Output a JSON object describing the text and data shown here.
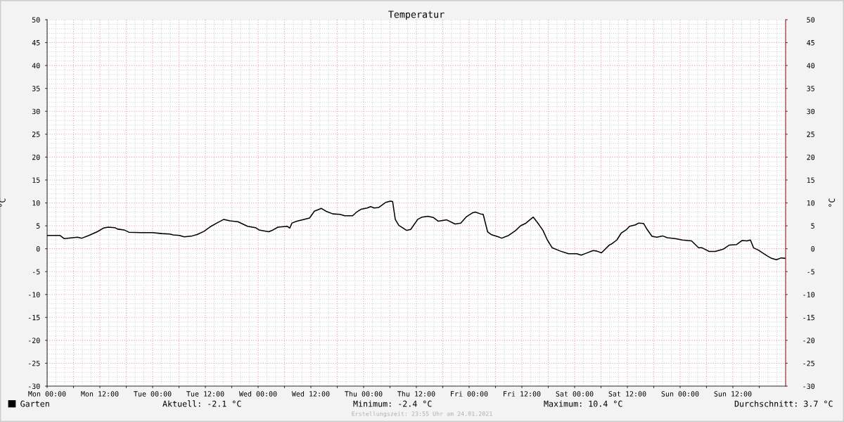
{
  "chart_data": {
    "type": "line",
    "title": "Temperatur",
    "ylabel": "°C",
    "y2label": "°C",
    "x": [
      "2021-01-18T00:00",
      "2021-01-18T02:54",
      "2021-01-18T03:54",
      "2021-01-18T05:48",
      "2021-01-18T06:54",
      "2021-01-18T07:54",
      "2021-01-18T09:30",
      "2021-01-18T11:24",
      "2021-01-18T12:48",
      "2021-01-18T13:54",
      "2021-01-18T15:24",
      "2021-01-18T16:00",
      "2021-01-18T17:30",
      "2021-01-18T18:36",
      "2021-01-18T21:18",
      "2021-01-19T00:00",
      "2021-01-19T02:06",
      "2021-01-19T03:54",
      "2021-01-19T04:42",
      "2021-01-19T06:06",
      "2021-01-19T07:12",
      "2021-01-19T09:00",
      "2021-01-19T10:06",
      "2021-01-19T11:42",
      "2021-01-19T13:18",
      "2021-01-19T14:36",
      "2021-01-19T16:12",
      "2021-01-19T17:36",
      "2021-01-19T19:24",
      "2021-01-19T21:36",
      "2021-01-19T23:24",
      "2021-01-20T00:12",
      "2021-01-20T02:24",
      "2021-01-20T03:24",
      "2021-01-20T04:30",
      "2021-01-20T06:36",
      "2021-01-20T07:12",
      "2021-01-20T07:42",
      "2021-01-20T08:48",
      "2021-01-20T10:06",
      "2021-01-20T11:42",
      "2021-01-20T12:48",
      "2021-01-20T14:24",
      "2021-01-20T15:24",
      "2021-01-20T17:00",
      "2021-01-20T18:36",
      "2021-01-20T19:42",
      "2021-01-20T21:30",
      "2021-01-20T22:24",
      "2021-01-20T23:24",
      "2021-01-21T00:48",
      "2021-01-21T01:36",
      "2021-01-21T02:24",
      "2021-01-21T03:24",
      "2021-01-21T04:00",
      "2021-01-21T05:00",
      "2021-01-21T06:06",
      "2021-01-21T06:36",
      "2021-01-21T07:12",
      "2021-01-21T08:00",
      "2021-01-21T09:48",
      "2021-01-21T10:42",
      "2021-01-21T12:18",
      "2021-01-21T13:18",
      "2021-01-21T14:36",
      "2021-01-21T15:54",
      "2021-01-21T17:00",
      "2021-01-21T18:54",
      "2021-01-21T20:48",
      "2021-01-21T22:06",
      "2021-01-21T23:24",
      "2021-01-22T00:42",
      "2021-01-22T01:24",
      "2021-01-22T02:36",
      "2021-01-22T03:12",
      "2021-01-22T04:12",
      "2021-01-22T05:00",
      "2021-01-22T06:54",
      "2021-01-22T07:24",
      "2021-01-22T09:00",
      "2021-01-22T10:36",
      "2021-01-22T11:42",
      "2021-01-22T12:48",
      "2021-01-22T13:48",
      "2021-01-22T14:36",
      "2021-01-22T15:42",
      "2021-01-22T16:48",
      "2021-01-22T17:48",
      "2021-01-22T18:54",
      "2021-01-22T20:42",
      "2021-01-22T22:36",
      "2021-01-23T00:30",
      "2021-01-23T01:30",
      "2021-01-23T02:36",
      "2021-01-23T04:12",
      "2021-01-23T05:00",
      "2021-01-23T06:06",
      "2021-01-23T07:54",
      "2021-01-23T08:30",
      "2021-01-23T09:36",
      "2021-01-23T10:36",
      "2021-01-23T11:42",
      "2021-01-23T12:30",
      "2021-01-23T13:48",
      "2021-01-23T14:36",
      "2021-01-23T15:42",
      "2021-01-23T16:30",
      "2021-01-23T17:36",
      "2021-01-23T18:42",
      "2021-01-23T20:00",
      "2021-01-23T21:06",
      "2021-01-23T22:54",
      "2021-01-24T00:30",
      "2021-01-24T02:36",
      "2021-01-24T04:12",
      "2021-01-24T05:00",
      "2021-01-24T06:36",
      "2021-01-24T08:00",
      "2021-01-24T09:48",
      "2021-01-24T11:12",
      "2021-01-24T12:48",
      "2021-01-24T14:06",
      "2021-01-24T15:12",
      "2021-01-24T16:00",
      "2021-01-24T16:42",
      "2021-01-24T17:48",
      "2021-01-24T19:42",
      "2021-01-24T20:48",
      "2021-01-24T21:54",
      "2021-01-24T23:00",
      "2021-01-24T23:55"
    ],
    "series": [
      {
        "name": "Garten",
        "color": "#000000",
        "values": [
          2.9,
          2.9,
          2.2,
          2.4,
          2.5,
          2.3,
          2.9,
          3.7,
          4.5,
          4.7,
          4.6,
          4.3,
          4.1,
          3.6,
          3.5,
          3.5,
          3.3,
          3.2,
          3.0,
          2.9,
          2.6,
          2.8,
          3.1,
          3.8,
          4.9,
          5.6,
          6.4,
          6.1,
          5.9,
          4.9,
          4.6,
          4.1,
          3.7,
          4.1,
          4.7,
          4.9,
          4.5,
          5.6,
          6.0,
          6.3,
          6.7,
          8.2,
          8.8,
          8.2,
          7.6,
          7.5,
          7.2,
          7.2,
          8.0,
          8.6,
          8.9,
          9.2,
          8.9,
          9.0,
          9.4,
          10.1,
          10.4,
          10.3,
          6.4,
          5.1,
          4.0,
          4.2,
          6.4,
          6.9,
          7.1,
          6.8,
          6.0,
          6.3,
          5.4,
          5.6,
          7.0,
          7.8,
          8.0,
          7.6,
          7.5,
          3.7,
          3.1,
          2.5,
          2.3,
          2.9,
          4.0,
          5.0,
          5.5,
          6.3,
          6.9,
          5.5,
          4.0,
          1.9,
          0.2,
          -0.5,
          -1.1,
          -1.1,
          -1.4,
          -1.0,
          -0.4,
          -0.5,
          -0.9,
          0.8,
          1.1,
          1.9,
          3.4,
          4.1,
          4.9,
          5.2,
          5.6,
          5.5,
          4.2,
          2.7,
          2.5,
          2.8,
          2.4,
          2.2,
          1.9,
          1.7,
          0.2,
          0.2,
          -0.6,
          -0.6,
          -0.1,
          0.8,
          0.9,
          1.8,
          1.7,
          1.9,
          0.2,
          -0.3,
          -1.5,
          -2.1,
          -2.4,
          -2.0,
          -2.1
        ]
      }
    ],
    "xlim": [
      "2021-01-18T00:00",
      "2021-01-25T00:00"
    ],
    "xticks": [
      {
        "value": "2021-01-18T00:00",
        "label": "Mon 00:00"
      },
      {
        "value": "2021-01-18T06:00",
        "label": null
      },
      {
        "value": "2021-01-18T12:00",
        "label": "Mon 12:00"
      },
      {
        "value": "2021-01-18T18:00",
        "label": null
      },
      {
        "value": "2021-01-19T00:00",
        "label": "Tue 00:00"
      },
      {
        "value": "2021-01-19T06:00",
        "label": null
      },
      {
        "value": "2021-01-19T12:00",
        "label": "Tue 12:00"
      },
      {
        "value": "2021-01-19T18:00",
        "label": null
      },
      {
        "value": "2021-01-20T00:00",
        "label": "Wed 00:00"
      },
      {
        "value": "2021-01-20T06:00",
        "label": null
      },
      {
        "value": "2021-01-20T12:00",
        "label": "Wed 12:00"
      },
      {
        "value": "2021-01-20T18:00",
        "label": null
      },
      {
        "value": "2021-01-21T00:00",
        "label": "Thu 00:00"
      },
      {
        "value": "2021-01-21T06:00",
        "label": null
      },
      {
        "value": "2021-01-21T12:00",
        "label": "Thu 12:00"
      },
      {
        "value": "2021-01-21T18:00",
        "label": null
      },
      {
        "value": "2021-01-22T00:00",
        "label": "Fri 00:00"
      },
      {
        "value": "2021-01-22T06:00",
        "label": null
      },
      {
        "value": "2021-01-22T12:00",
        "label": "Fri 12:00"
      },
      {
        "value": "2021-01-22T18:00",
        "label": null
      },
      {
        "value": "2021-01-23T00:00",
        "label": "Sat 00:00"
      },
      {
        "value": "2021-01-23T06:00",
        "label": null
      },
      {
        "value": "2021-01-23T12:00",
        "label": "Sat 12:00"
      },
      {
        "value": "2021-01-23T18:00",
        "label": null
      },
      {
        "value": "2021-01-24T00:00",
        "label": "Sun 00:00"
      },
      {
        "value": "2021-01-24T06:00",
        "label": null
      },
      {
        "value": "2021-01-24T12:00",
        "label": "Sun 12:00"
      },
      {
        "value": "2021-01-24T18:00",
        "label": null
      }
    ],
    "ylim": [
      -30,
      50
    ],
    "yticks": [
      -30,
      -25,
      -20,
      -15,
      -10,
      -5,
      0,
      5,
      10,
      15,
      20,
      25,
      30,
      35,
      40,
      45,
      50
    ],
    "y2lim": [
      -30,
      50
    ],
    "y2ticks": [
      -30,
      -25,
      -20,
      -15,
      -10,
      -5,
      0,
      5,
      10,
      15,
      20,
      25,
      30,
      35,
      40,
      45,
      50
    ],
    "grid": true,
    "legend": "bottom left",
    "line_style": "solid",
    "annotations": [
      "Aktuell: -2.1 °C",
      "Minimum: -2.4 °C",
      "Maximum: 10.4 °C",
      "Durchschnitt: 3.7 °C",
      "Erstellungszeit: 23:55 Uhr am 24.01.2021"
    ]
  }
}
